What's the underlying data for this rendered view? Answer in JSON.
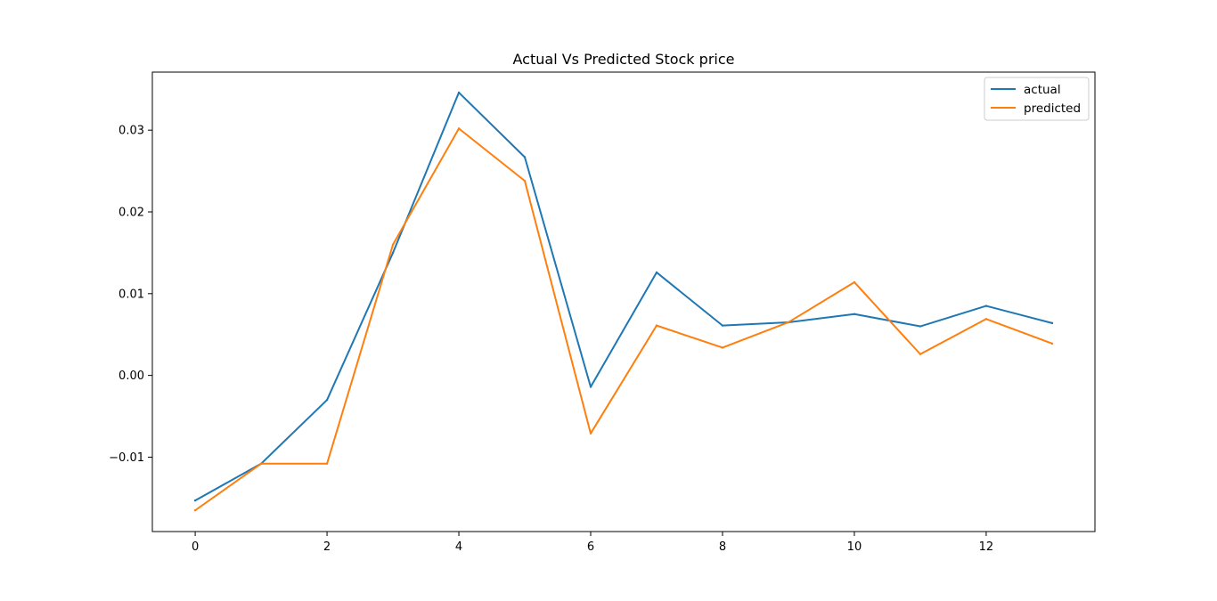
{
  "chart_data": {
    "type": "line",
    "title": "Actual Vs Predicted Stock price",
    "xlabel": "",
    "ylabel": "",
    "x": [
      0,
      1,
      2,
      3,
      4,
      5,
      6,
      7,
      8,
      9,
      10,
      11,
      12,
      13
    ],
    "xlim": [
      -0.65,
      13.65
    ],
    "ylim": [
      -0.0191,
      0.0371
    ],
    "xticks": [
      0,
      2,
      4,
      6,
      8,
      10,
      12
    ],
    "yticks": [
      -0.01,
      0.0,
      0.01,
      0.02,
      0.03
    ],
    "ytick_labels": [
      "−0.01",
      "0.00",
      "0.01",
      "0.02",
      "0.03"
    ],
    "grid": false,
    "legend_position": "top-right",
    "series": [
      {
        "name": "actual",
        "color": "#1f77b4",
        "values": [
          -0.0153,
          -0.0108,
          -0.003,
          0.015,
          0.0346,
          0.0267,
          -0.0014,
          0.0126,
          0.0061,
          0.0065,
          0.0075,
          0.006,
          0.0085,
          0.0064
        ]
      },
      {
        "name": "predicted",
        "color": "#ff7f0e",
        "values": [
          -0.0165,
          -0.0108,
          -0.0108,
          0.016,
          0.0302,
          0.0238,
          -0.0071,
          0.0061,
          0.0034,
          0.0065,
          0.0114,
          0.0026,
          0.0069,
          0.0039
        ]
      }
    ]
  }
}
